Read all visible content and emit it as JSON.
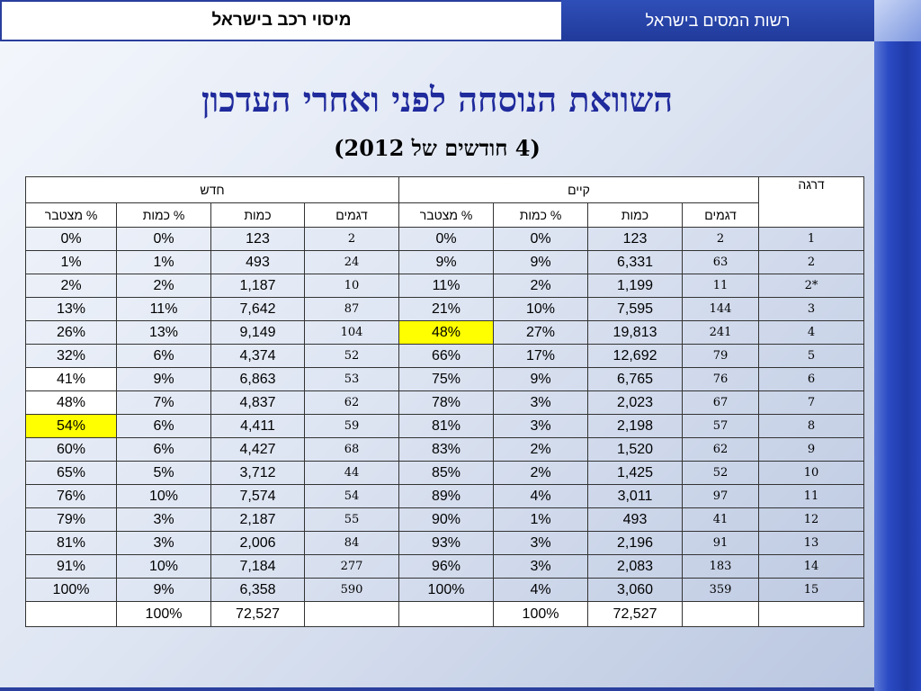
{
  "header": {
    "app_title": "מיסוי רכב בישראל",
    "org_title": "רשות המסים בישראל"
  },
  "heading": "השוואת הנוסחה לפני ואחרי העדכון",
  "subheading": "(4 חודשים של 2012)",
  "table": {
    "group_headers": {
      "grade": "דרגה",
      "existing": "קיים",
      "new": "חדש"
    },
    "sub_headers": {
      "existing_models": "דגמים",
      "existing_qty": "כמות",
      "existing_qty_pct": "% כמות",
      "existing_cum_pct": "% מצטבר",
      "new_models": "דגמים",
      "new_qty": "כמות",
      "new_qty_pct": "% כמות",
      "new_cum_pct": "% מצטבר"
    },
    "rows": [
      {
        "grade": "1",
        "e_models": "2",
        "e_qty": "123",
        "e_pct": "0%",
        "e_cum": "0%",
        "n_models": "2",
        "n_qty": "123",
        "n_pct": "0%",
        "n_cum": "0%"
      },
      {
        "grade": "2",
        "e_models": "63",
        "e_qty": "6,331",
        "e_pct": "9%",
        "e_cum": "9%",
        "n_models": "24",
        "n_qty": "493",
        "n_pct": "1%",
        "n_cum": "1%"
      },
      {
        "grade": "*2",
        "e_models": "11",
        "e_qty": "1,199",
        "e_pct": "2%",
        "e_cum": "11%",
        "n_models": "10",
        "n_qty": "1,187",
        "n_pct": "2%",
        "n_cum": "2%"
      },
      {
        "grade": "3",
        "e_models": "144",
        "e_qty": "7,595",
        "e_pct": "10%",
        "e_cum": "21%",
        "n_models": "87",
        "n_qty": "7,642",
        "n_pct": "11%",
        "n_cum": "13%"
      },
      {
        "grade": "4",
        "e_models": "241",
        "e_qty": "19,813",
        "e_pct": "27%",
        "e_cum": "48%",
        "n_models": "104",
        "n_qty": "9,149",
        "n_pct": "13%",
        "n_cum": "26%"
      },
      {
        "grade": "5",
        "e_models": "79",
        "e_qty": "12,692",
        "e_pct": "17%",
        "e_cum": "66%",
        "n_models": "52",
        "n_qty": "4,374",
        "n_pct": "6%",
        "n_cum": "32%"
      },
      {
        "grade": "6",
        "e_models": "76",
        "e_qty": "6,765",
        "e_pct": "9%",
        "e_cum": "75%",
        "n_models": "53",
        "n_qty": "6,863",
        "n_pct": "9%",
        "n_cum": "41%"
      },
      {
        "grade": "7",
        "e_models": "67",
        "e_qty": "2,023",
        "e_pct": "3%",
        "e_cum": "78%",
        "n_models": "62",
        "n_qty": "4,837",
        "n_pct": "7%",
        "n_cum": "48%"
      },
      {
        "grade": "8",
        "e_models": "57",
        "e_qty": "2,198",
        "e_pct": "3%",
        "e_cum": "81%",
        "n_models": "59",
        "n_qty": "4,411",
        "n_pct": "6%",
        "n_cum": "54%"
      },
      {
        "grade": "9",
        "e_models": "62",
        "e_qty": "1,520",
        "e_pct": "2%",
        "e_cum": "83%",
        "n_models": "68",
        "n_qty": "4,427",
        "n_pct": "6%",
        "n_cum": "60%"
      },
      {
        "grade": "10",
        "e_models": "52",
        "e_qty": "1,425",
        "e_pct": "2%",
        "e_cum": "85%",
        "n_models": "44",
        "n_qty": "3,712",
        "n_pct": "5%",
        "n_cum": "65%"
      },
      {
        "grade": "11",
        "e_models": "97",
        "e_qty": "3,011",
        "e_pct": "4%",
        "e_cum": "89%",
        "n_models": "54",
        "n_qty": "7,574",
        "n_pct": "10%",
        "n_cum": "76%"
      },
      {
        "grade": "12",
        "e_models": "41",
        "e_qty": "493",
        "e_pct": "1%",
        "e_cum": "90%",
        "n_models": "55",
        "n_qty": "2,187",
        "n_pct": "3%",
        "n_cum": "79%"
      },
      {
        "grade": "13",
        "e_models": "91",
        "e_qty": "2,196",
        "e_pct": "3%",
        "e_cum": "93%",
        "n_models": "84",
        "n_qty": "2,006",
        "n_pct": "3%",
        "n_cum": "81%"
      },
      {
        "grade": "14",
        "e_models": "183",
        "e_qty": "2,083",
        "e_pct": "3%",
        "e_cum": "96%",
        "n_models": "277",
        "n_qty": "7,184",
        "n_pct": "10%",
        "n_cum": "91%"
      },
      {
        "grade": "15",
        "e_models": "359",
        "e_qty": "3,060",
        "e_pct": "4%",
        "e_cum": "100%",
        "n_models": "590",
        "n_qty": "6,358",
        "n_pct": "9%",
        "n_cum": "100%"
      }
    ],
    "totals": {
      "e_qty": "72,527",
      "e_pct": "100%",
      "n_qty": "72,527",
      "n_pct": "100%"
    },
    "highlight_color": "#ffff00"
  }
}
